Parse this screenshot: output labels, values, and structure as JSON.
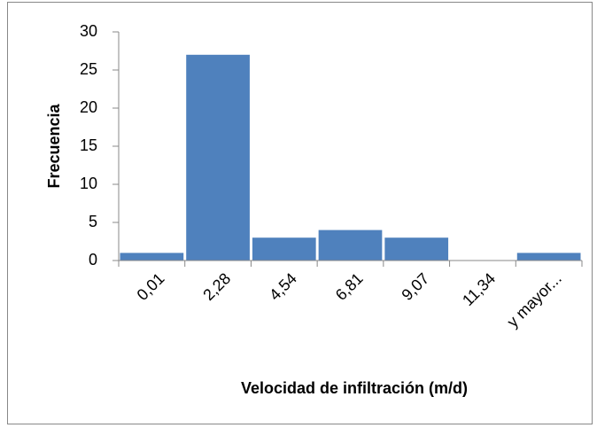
{
  "chart_data": {
    "type": "bar",
    "categories": [
      "0,01",
      "2,28",
      "4,54",
      "6,81",
      "9,07",
      "11,34",
      "y mayor..."
    ],
    "values": [
      1,
      27,
      3,
      4,
      3,
      0,
      1
    ],
    "color": "#4f81bd",
    "xlabel": "Velocidad de infiltración (m/d)",
    "ylabel": "Frecuencia",
    "ylim": [
      0,
      30
    ],
    "yticks": [
      0,
      5,
      10,
      15,
      20,
      25,
      30
    ],
    "grid": false
  }
}
